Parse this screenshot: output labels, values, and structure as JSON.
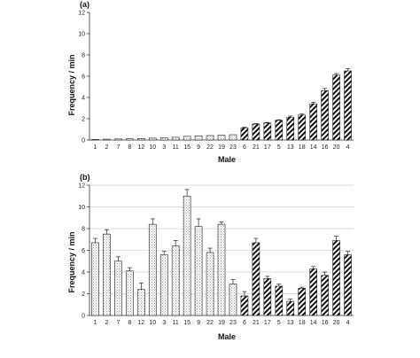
{
  "chart_data": [
    {
      "type": "bar",
      "panel_label": "(a)",
      "xlabel": "Male",
      "ylabel": "Frequency / min",
      "ylim": [
        0,
        12
      ],
      "yticks": [
        0,
        2,
        4,
        6,
        8,
        10,
        12
      ],
      "categories": [
        "1",
        "2",
        "7",
        "8",
        "12",
        "10",
        "3",
        "11",
        "15",
        "9",
        "22",
        "19",
        "23",
        "6",
        "21",
        "17",
        "5",
        "13",
        "18",
        "14",
        "16",
        "20",
        "4"
      ],
      "values": [
        0.05,
        0.08,
        0.1,
        0.12,
        0.14,
        0.18,
        0.22,
        0.26,
        0.35,
        0.38,
        0.42,
        0.45,
        0.5,
        1.15,
        1.5,
        1.6,
        1.85,
        2.15,
        2.35,
        3.4,
        4.65,
        6.1,
        6.5
      ],
      "errors": [
        0,
        0,
        0,
        0,
        0,
        0,
        0,
        0,
        0,
        0,
        0,
        0,
        0,
        0.05,
        0.05,
        0.05,
        0.05,
        0.1,
        0.1,
        0.15,
        0.2,
        0.15,
        0.2
      ],
      "groups": [
        "dotted",
        "dotted",
        "dotted",
        "dotted",
        "dotted",
        "dotted",
        "dotted",
        "dotted",
        "dotted",
        "dotted",
        "dotted",
        "dotted",
        "dotted",
        "hatched",
        "hatched",
        "hatched",
        "hatched",
        "hatched",
        "hatched",
        "hatched",
        "hatched",
        "hatched",
        "hatched"
      ],
      "grid": false
    },
    {
      "type": "bar",
      "panel_label": "(b)",
      "xlabel": "Male",
      "ylabel": "Frequency / min",
      "ylim": [
        0,
        12
      ],
      "yticks": [
        0,
        2,
        4,
        6,
        8,
        10,
        12
      ],
      "categories": [
        "1",
        "2",
        "7",
        "8",
        "12",
        "10",
        "3",
        "11",
        "15",
        "9",
        "22",
        "19",
        "23",
        "6",
        "21",
        "17",
        "5",
        "13",
        "18",
        "14",
        "16",
        "20",
        "4"
      ],
      "values": [
        6.7,
        7.5,
        5.0,
        4.1,
        2.4,
        8.4,
        5.6,
        6.4,
        11.0,
        8.2,
        5.8,
        8.4,
        2.9,
        1.8,
        6.7,
        3.4,
        2.7,
        1.3,
        2.5,
        4.3,
        3.7,
        6.9,
        5.6
      ],
      "errors": [
        0.4,
        0.4,
        0.4,
        0.3,
        0.6,
        0.5,
        0.3,
        0.5,
        0.6,
        0.7,
        0.4,
        0.2,
        0.4,
        0.4,
        0.4,
        0.2,
        0.2,
        0.2,
        0.1,
        0.2,
        0.3,
        0.4,
        0.3
      ],
      "groups": [
        "dotted",
        "dotted",
        "dotted",
        "dotted",
        "dotted",
        "dotted",
        "dotted",
        "dotted",
        "dotted",
        "dotted",
        "dotted",
        "dotted",
        "dotted",
        "hatched",
        "hatched",
        "hatched",
        "hatched",
        "hatched",
        "hatched",
        "hatched",
        "hatched",
        "hatched",
        "hatched"
      ],
      "grid": true
    }
  ]
}
